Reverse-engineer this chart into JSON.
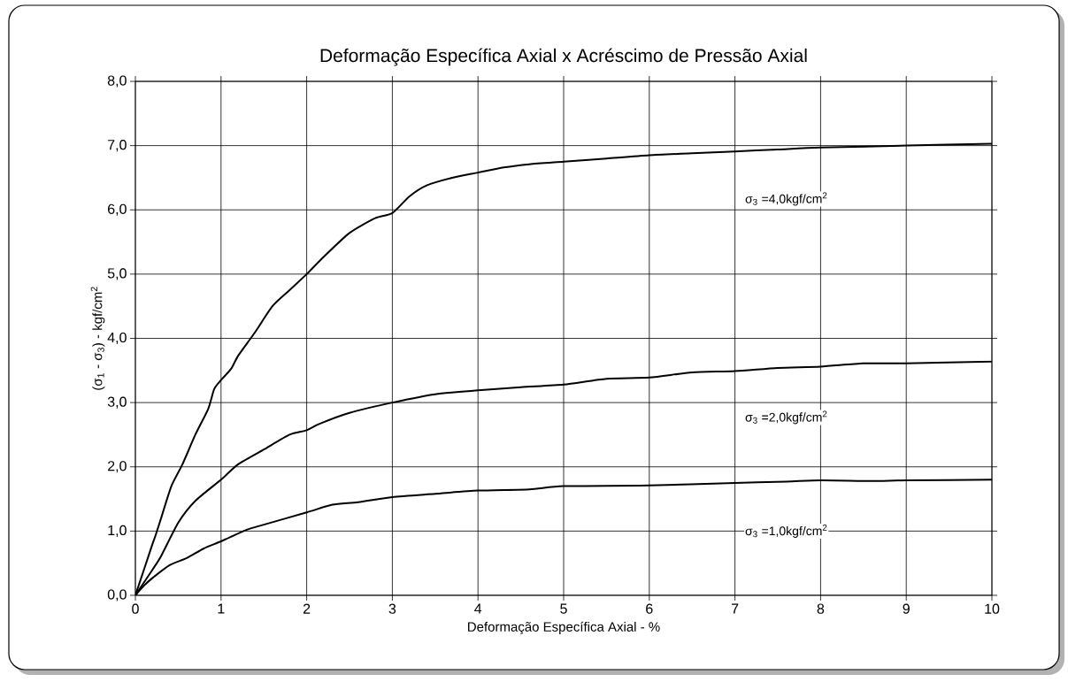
{
  "chart_data": {
    "type": "line",
    "title": "Deformação Específica Axial x Acréscimo de Pressão Axial",
    "xlabel": "Deformação Específica Axial - %",
    "ylabel": "(σ$_{1}$ - σ$_{3}$) - kgf/cm$^{2}$",
    "series": [
      {
        "color": "#000000",
        "x": [
          0,
          0.1,
          0.2,
          0.24,
          0.3,
          0.42,
          0.55,
          0.7,
          0.85,
          0.92,
          1.0,
          1.12,
          1.2,
          1.4,
          1.6,
          1.8,
          2.0,
          2.2,
          2.5,
          2.8,
          3.0,
          3.2,
          3.4,
          3.7,
          4.0,
          4.3,
          4.6,
          5,
          5.5,
          6,
          6.5,
          7,
          7.5,
          8,
          9,
          10
        ],
        "values": [
          0,
          0.4,
          0.8,
          0.95,
          1.2,
          1.7,
          2.04,
          2.5,
          2.9,
          3.21,
          3.35,
          3.53,
          3.73,
          4.1,
          4.5,
          4.75,
          5.0,
          5.27,
          5.64,
          5.87,
          5.95,
          6.21,
          6.38,
          6.5,
          6.58,
          6.66,
          6.71,
          6.75,
          6.8,
          6.85,
          6.88,
          6.91,
          6.94,
          6.97,
          7.0,
          7.03
        ]
      },
      {
        "color": "#000000",
        "x": [
          0,
          0.1,
          0.2,
          0.3,
          0.5,
          0.7,
          1.0,
          1.2,
          1.5,
          1.8,
          2.0,
          2.15,
          2.5,
          3.0,
          3.5,
          4,
          4.5,
          5,
          5.5,
          6,
          6.5,
          7,
          7.5,
          8,
          8.5,
          9,
          10
        ],
        "values": [
          0,
          0.2,
          0.4,
          0.61,
          1.13,
          1.47,
          1.8,
          2.04,
          2.27,
          2.5,
          2.57,
          2.67,
          2.84,
          3.0,
          3.13,
          3.19,
          3.24,
          3.28,
          3.37,
          3.39,
          3.47,
          3.49,
          3.54,
          3.56,
          3.61,
          3.61,
          3.64
        ]
      },
      {
        "color": "#000000",
        "x": [
          0,
          0.1,
          0.2,
          0.4,
          0.6,
          0.8,
          1.0,
          1.3,
          1.5,
          2.0,
          2.3,
          2.6,
          3.0,
          3.5,
          4,
          4.6,
          5,
          6,
          7,
          7.6,
          8,
          8.6,
          9,
          10
        ],
        "values": [
          0,
          0.15,
          0.27,
          0.47,
          0.58,
          0.73,
          0.84,
          1.02,
          1.1,
          1.29,
          1.41,
          1.45,
          1.53,
          1.58,
          1.63,
          1.65,
          1.7,
          1.71,
          1.75,
          1.77,
          1.79,
          1.78,
          1.79,
          1.8
        ]
      }
    ],
    "xlim": [
      0,
      10
    ],
    "xticks": [
      0,
      1,
      2,
      3,
      4,
      5,
      6,
      7,
      8,
      9,
      10
    ],
    "ylim": [
      0,
      8
    ],
    "yticks": [
      {
        "value": 0,
        "label": "0,0"
      },
      {
        "value": 1,
        "label": "1,0"
      },
      {
        "value": 2,
        "label": "2,0"
      },
      {
        "value": 3,
        "label": "3,0"
      },
      {
        "value": 4,
        "label": "4,0"
      },
      {
        "value": 5,
        "label": "5,0"
      },
      {
        "value": 6,
        "label": "6,0"
      },
      {
        "value": 7,
        "label": "7,0"
      },
      {
        "value": 8,
        "label": "8,0"
      }
    ],
    "grid": true,
    "legend": false,
    "marker": "none",
    "line_style": "solid",
    "annotations": [
      "σ$_{3}$ =4,0kgf/cm$^{2}$",
      "σ$_{3}$ =2,0kgf/cm$^{2}$",
      "σ$_{3}$ =1,0kgf/cm$^{2}$"
    ]
  }
}
